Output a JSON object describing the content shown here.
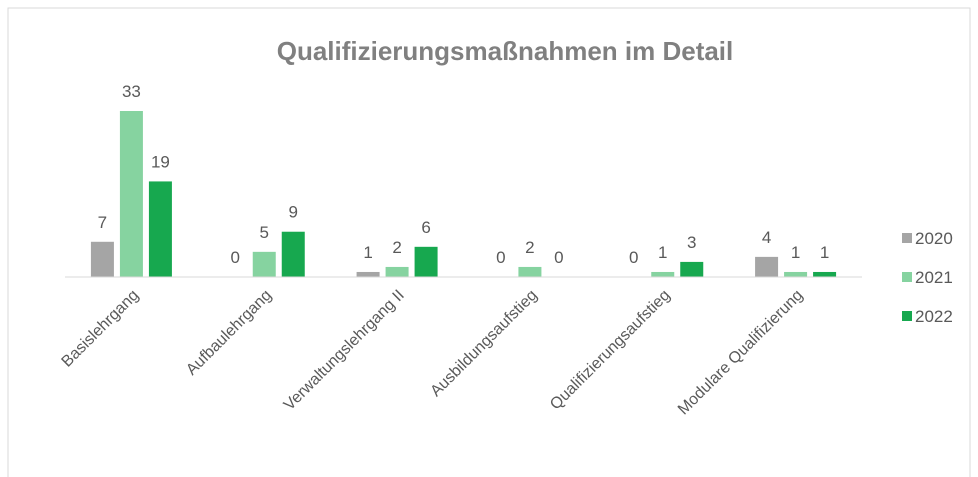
{
  "chart_data": {
    "type": "bar",
    "title": "Qualifizierungsmaßnahmen im Detail",
    "categories": [
      "Basislehrgang",
      "Aufbaulehrgang",
      "Verwaltungslehrgang II",
      "Ausbildungsaufstieg",
      "Qualifizierungsaufstieg",
      "Modulare Qualifizierung"
    ],
    "series": [
      {
        "name": "2020",
        "color": "#a5a5a5",
        "values": [
          7,
          0,
          1,
          0,
          0,
          4
        ]
      },
      {
        "name": "2021",
        "color": "#86d3a0",
        "values": [
          33,
          5,
          2,
          2,
          1,
          1
        ]
      },
      {
        "name": "2022",
        "color": "#17a84f",
        "values": [
          19,
          9,
          6,
          0,
          3,
          1
        ]
      }
    ],
    "legend": "right"
  }
}
